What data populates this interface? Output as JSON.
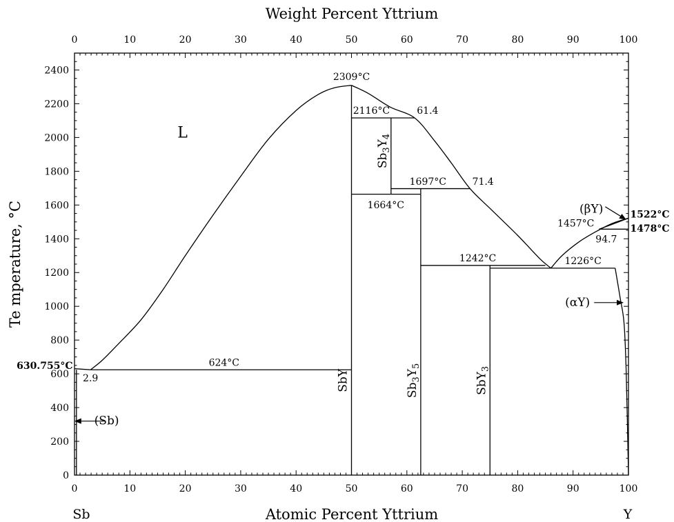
{
  "top_axis": {
    "title": "Weight Percent Yttrium",
    "ticks": [
      {
        "label": "0",
        "at": 0
      },
      {
        "label": "10",
        "at": 10
      },
      {
        "label": "20",
        "at": 20
      },
      {
        "label": "30",
        "at": 30
      },
      {
        "label": "40",
        "at": 40
      },
      {
        "label": "50",
        "at": 50
      },
      {
        "label": "60",
        "at": 60
      },
      {
        "label": "70",
        "at": 70
      },
      {
        "label": "80",
        "at": 80
      },
      {
        "label": "90",
        "at": 90
      },
      {
        "label": "100",
        "at": 100
      }
    ]
  },
  "x_axis": {
    "title": "Atomic Percent Yttrium",
    "min": 0,
    "max": 100,
    "ticks": [
      "0",
      "10",
      "20",
      "30",
      "40",
      "50",
      "60",
      "70",
      "80",
      "90",
      "100"
    ]
  },
  "y_axis": {
    "title": "Te mperature, °C",
    "min": 0,
    "max": 2500,
    "ticks": [
      "0",
      "200",
      "400",
      "600",
      "800",
      "1000",
      "1200",
      "1400",
      "1600",
      "1800",
      "2000",
      "2200",
      "2400"
    ]
  },
  "elements": {
    "left": "Sb",
    "right": "Y"
  },
  "liquidus": [
    [
      0,
      630.755
    ],
    [
      2.9,
      624
    ],
    [
      5,
      680
    ],
    [
      8,
      780
    ],
    [
      12,
      920
    ],
    [
      16,
      1100
    ],
    [
      20,
      1300
    ],
    [
      25,
      1540
    ],
    [
      30,
      1770
    ],
    [
      35,
      1990
    ],
    [
      40,
      2160
    ],
    [
      44,
      2255
    ],
    [
      47,
      2295
    ],
    [
      50,
      2309
    ],
    [
      53,
      2262
    ],
    [
      57,
      2180
    ],
    [
      61.4,
      2116
    ],
    [
      65,
      1980
    ],
    [
      68,
      1850
    ],
    [
      71.4,
      1697
    ],
    [
      75,
      1580
    ],
    [
      80,
      1420
    ],
    [
      84,
      1282
    ],
    [
      86,
      1226
    ],
    [
      88,
      1300
    ],
    [
      91,
      1380
    ],
    [
      94,
      1440
    ],
    [
      97,
      1490
    ],
    [
      100,
      1522
    ]
  ],
  "beta_y_boundary": [
    [
      94.7,
      1457
    ],
    [
      97,
      1485
    ],
    [
      100,
      1522
    ]
  ],
  "alpha_y_solvus": [
    [
      97.6,
      1226
    ],
    [
      98.5,
      1050
    ],
    [
      99.2,
      900
    ],
    [
      99.6,
      600
    ],
    [
      100,
      0
    ]
  ],
  "compounds": [
    {
      "label_main": "SbY",
      "label_sub_a": "",
      "label_mid": "",
      "label_sub_b": "",
      "x": 50,
      "y": 560,
      "top": 2309,
      "rotate": true
    },
    {
      "label_main": "Sb",
      "label_sub_a": "3",
      "label_mid": "Y",
      "label_sub_b": "4",
      "x": 57.14,
      "y": 1920,
      "top": 2116,
      "bottom": 1664,
      "rotate": true
    },
    {
      "label_main": "Sb",
      "label_sub_a": "3",
      "label_mid": "Y",
      "label_sub_b": "5",
      "x": 62.5,
      "y": 560,
      "top": 1697,
      "rotate": true
    },
    {
      "label_main": "Sb",
      "label_sub_a": "",
      "label_mid": "Y",
      "label_sub_b": "3",
      "x": 75,
      "y": 560,
      "top": 1242,
      "rotate": true
    }
  ],
  "isotherms": [
    {
      "x1": 2.9,
      "x2": 50,
      "t": 624
    },
    {
      "x1": 50,
      "x2": 61.4,
      "t": 2116
    },
    {
      "x1": 57.14,
      "x2": 71.4,
      "t": 1697
    },
    {
      "x1": 50,
      "x2": 62.5,
      "t": 1664
    },
    {
      "x1": 62.5,
      "x2": 85,
      "t": 1242
    },
    {
      "x1": 75,
      "x2": 97.6,
      "t": 1226
    },
    {
      "x1": 94.7,
      "x2": 100,
      "t": 1457
    }
  ],
  "annotations": [
    {
      "text": "2309°C",
      "x": 50,
      "y": 2340,
      "style": "ann",
      "anchor": "middle"
    },
    {
      "text": "2116°C",
      "x": 53.6,
      "y": 2140,
      "style": "ann",
      "anchor": "middle"
    },
    {
      "text": "61.4",
      "x": 61.8,
      "y": 2140,
      "style": "ann",
      "anchor": "start"
    },
    {
      "text": "1697°C",
      "x": 63.8,
      "y": 1720,
      "style": "ann",
      "anchor": "middle"
    },
    {
      "text": "71.4",
      "x": 71.8,
      "y": 1720,
      "style": "ann",
      "anchor": "start"
    },
    {
      "text": "1664°C",
      "x": 56.2,
      "y": 1580,
      "style": "ann",
      "anchor": "middle"
    },
    {
      "text": "1242°C",
      "x": 72.8,
      "y": 1267,
      "style": "ann",
      "anchor": "middle"
    },
    {
      "text": "1226°C",
      "x": 91.8,
      "y": 1250,
      "style": "ann",
      "anchor": "middle"
    },
    {
      "text": "1457°C",
      "x": 90.5,
      "y": 1472,
      "style": "ann",
      "anchor": "middle"
    },
    {
      "text": "94.7",
      "x": 96.0,
      "y": 1378,
      "style": "ann",
      "anchor": "middle"
    },
    {
      "text": "624°C",
      "x": 27,
      "y": 648,
      "style": "ann",
      "anchor": "middle"
    },
    {
      "text": "2.9",
      "x": 1.5,
      "y": 555,
      "style": "ann",
      "anchor": "start"
    },
    {
      "text": "630.755°C",
      "x": -0.3,
      "y": 630,
      "style": "ann-bold",
      "anchor": "end"
    },
    {
      "text": "1522°C",
      "x": 100.3,
      "y": 1525,
      "style": "ann-bold",
      "anchor": "start"
    },
    {
      "text": "1478°C",
      "x": 100.3,
      "y": 1443,
      "style": "ann-bold",
      "anchor": "start"
    },
    {
      "text": "L",
      "x": 19.5,
      "y": 2000,
      "style": "phase-big",
      "anchor": "middle"
    },
    {
      "text": "(βY)",
      "x": 93.3,
      "y": 1555,
      "style": "phase",
      "anchor": "middle"
    },
    {
      "text": "(αY)",
      "x": 90.8,
      "y": 1000,
      "style": "phase",
      "anchor": "middle"
    },
    {
      "text": "(Sb)",
      "x": 5.8,
      "y": 300,
      "style": "phase",
      "anchor": "middle"
    }
  ],
  "arrows": [
    {
      "x1": 5.6,
      "y1": 320,
      "x2": 0.1,
      "y2": 320
    },
    {
      "x1": 93.8,
      "y1": 1022,
      "x2": 99.0,
      "y2": 1022
    },
    {
      "x1": 95.8,
      "y1": 1590,
      "x2": 99.5,
      "y2": 1515
    }
  ]
}
